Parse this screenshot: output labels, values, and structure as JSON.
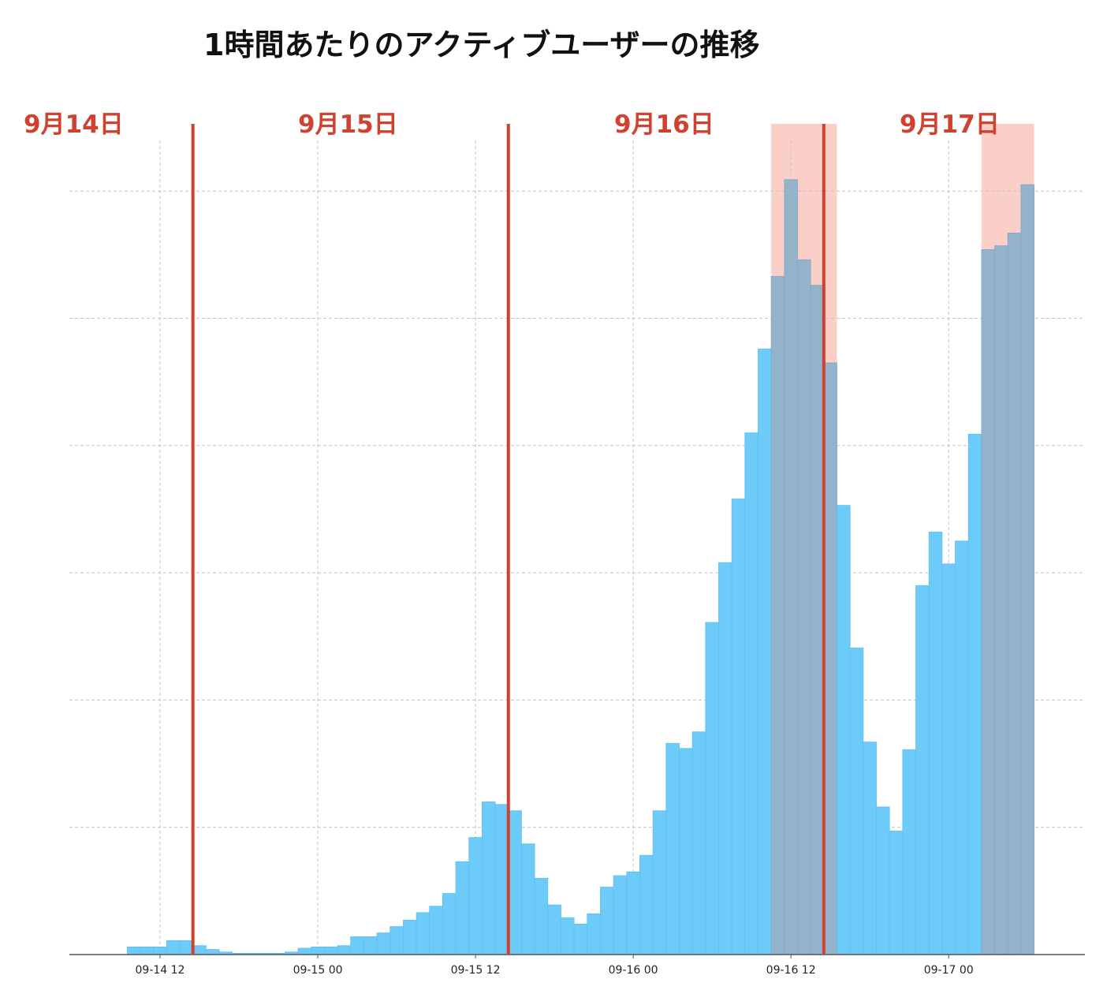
{
  "chart_data": {
    "type": "bar",
    "title": "1時間あたりのアクティブユーザーの推移",
    "xlabel": "",
    "ylabel": "",
    "x_tick_labels": [
      "09-14 12",
      "09-15 00",
      "09-15 12",
      "09-16 00",
      "09-16 12",
      "09-17 00"
    ],
    "x": [
      "09-14 10",
      "09-14 11",
      "09-14 12",
      "09-14 13",
      "09-14 14",
      "09-14 15",
      "09-14 16",
      "09-14 17",
      "09-14 18",
      "09-14 19",
      "09-14 20",
      "09-14 21",
      "09-14 22",
      "09-14 23",
      "09-15 00",
      "09-15 01",
      "09-15 02",
      "09-15 03",
      "09-15 04",
      "09-15 05",
      "09-15 06",
      "09-15 07",
      "09-15 08",
      "09-15 09",
      "09-15 10",
      "09-15 11",
      "09-15 12",
      "09-15 13",
      "09-15 14",
      "09-15 15",
      "09-15 16",
      "09-15 17",
      "09-15 18",
      "09-15 19",
      "09-15 20",
      "09-15 21",
      "09-15 22",
      "09-15 23",
      "09-16 00",
      "09-16 01",
      "09-16 02",
      "09-16 03",
      "09-16 04",
      "09-16 05",
      "09-16 06",
      "09-16 07",
      "09-16 08",
      "09-16 09",
      "09-16 10",
      "09-16 11",
      "09-16 12",
      "09-16 13",
      "09-16 14",
      "09-16 15",
      "09-16 16",
      "09-16 17",
      "09-16 18",
      "09-16 19",
      "09-16 20",
      "09-16 21",
      "09-16 22",
      "09-16 23",
      "09-17 00",
      "09-17 01",
      "09-17 02",
      "09-17 03",
      "09-17 04",
      "09-17 05",
      "09-17 06"
    ],
    "values": [
      0.06,
      0.06,
      0.06,
      0.11,
      0.11,
      0.07,
      0.04,
      0.02,
      0.01,
      0.01,
      0.01,
      0.01,
      0.02,
      0.05,
      0.06,
      0.06,
      0.07,
      0.14,
      0.14,
      0.17,
      0.22,
      0.27,
      0.33,
      0.38,
      0.48,
      0.73,
      0.92,
      1.2,
      1.18,
      1.13,
      0.87,
      0.6,
      0.39,
      0.29,
      0.24,
      0.32,
      0.53,
      0.62,
      0.65,
      0.78,
      1.13,
      1.66,
      1.62,
      1.75,
      2.61,
      3.08,
      3.58,
      4.1,
      4.76,
      5.33,
      6.09,
      5.46,
      5.26,
      4.65,
      3.53,
      2.41,
      1.67,
      1.16,
      0.97,
      1.61,
      2.9,
      3.32,
      3.07,
      3.25,
      4.09,
      5.54,
      5.57,
      5.67,
      6.05
    ],
    "y_unit_note": "",
    "ylim": [
      0,
      6.5
    ],
    "y_gridlines": [
      1,
      2,
      3,
      4,
      5,
      6
    ],
    "y_tick_labels_shown": false,
    "grid": true,
    "day_boundaries": [
      "09-14 14:30",
      "09-15 14:30",
      "09-16 14:30"
    ],
    "day_labels": [
      "9月14日",
      "9月15日",
      "9月16日",
      "9月17日"
    ],
    "highlight_ranges": [
      [
        "09-16 11",
        "09-16 15"
      ],
      [
        "09-17 03",
        "09-17 06"
      ]
    ],
    "colors": {
      "bar": "#6dcbfa",
      "bar_highlighted": "#93b2cb",
      "highlight": "#f9cfc7",
      "day_line": "#d0412f",
      "day_label": "#d0412f",
      "grid": "#c4c4c4",
      "axis": "#555555"
    }
  }
}
